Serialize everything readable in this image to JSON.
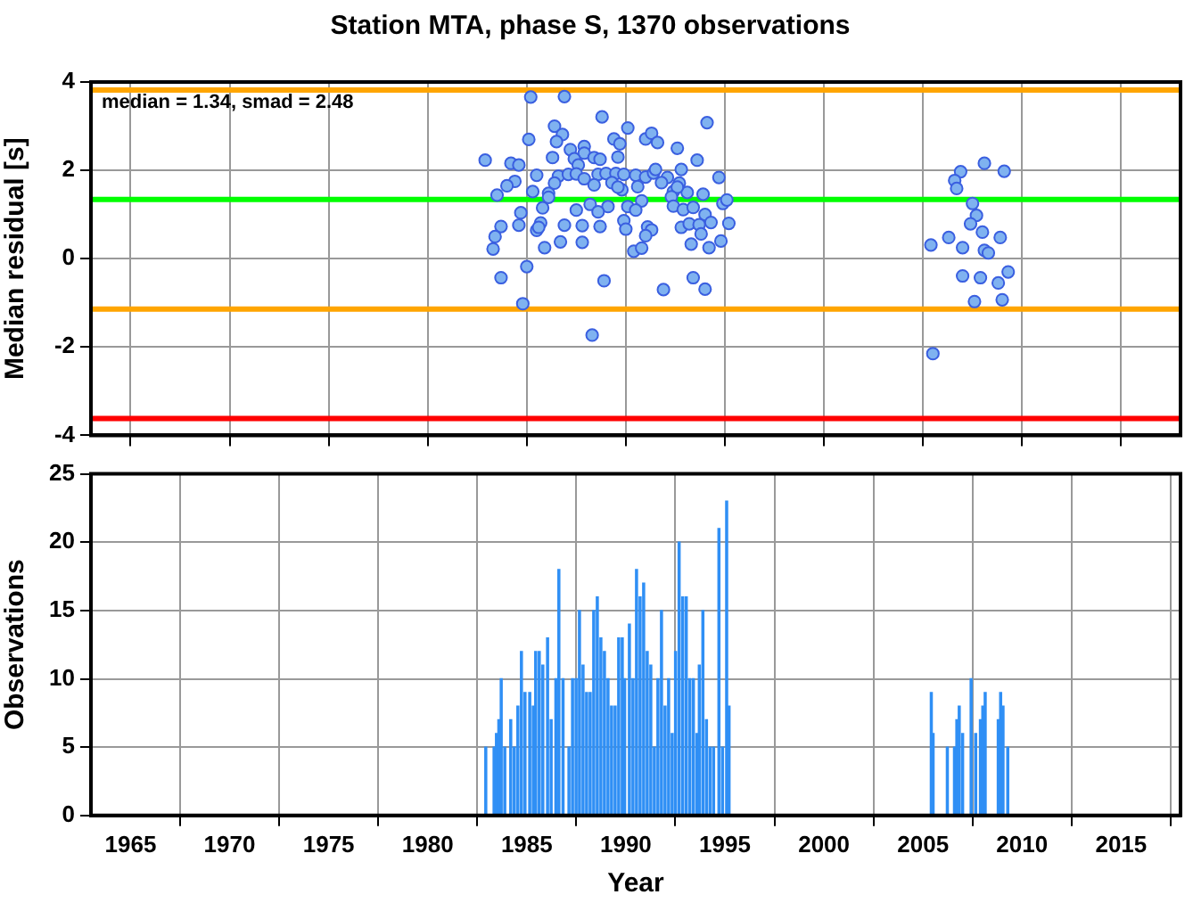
{
  "chart_data": [
    {
      "type": "scatter",
      "title": "Station MTA, phase S, 1370 observations",
      "ylabel": "Median residual [s]",
      "annotations": [
        "median = 1.34, smad = 2.48"
      ],
      "xlim": [
        1963,
        2018
      ],
      "xticks": [
        1965,
        1970,
        1975,
        1980,
        1985,
        1990,
        1995,
        2000,
        2005,
        2010,
        2015
      ],
      "ylim": [
        -4,
        4
      ],
      "yticks": [
        -4,
        -2,
        0,
        2,
        4
      ],
      "grid": true,
      "tick_labels": "y",
      "marker": "circle",
      "ref_lines": [
        {
          "axis": "y",
          "value": 3.82,
          "color": "#ffa500"
        },
        {
          "axis": "y",
          "value": 1.34,
          "color": "#00ff00"
        },
        {
          "axis": "y",
          "value": -1.14,
          "color": "#ffa500"
        },
        {
          "axis": "y",
          "value": -3.62,
          "color": "#ff0000"
        }
      ],
      "series": [
        {
          "color": "#7fb2f0",
          "x": [
            1985.2,
            1986.9,
            1988.8,
            1986.4,
            1986.8,
            1985.1,
            1986.5,
            1987.2,
            1987.9,
            1987.9,
            1987.4,
            1986.3,
            1982.9,
            1984.2,
            1984.6,
            1987.6,
            1988.4,
            1988.7,
            1989.6,
            1989.4,
            1989.7,
            1990.1,
            1991.0,
            1991.3,
            1991.6,
            1992.6,
            1994.1,
            1993.6,
            1992.8,
            1994.7,
            1985.5,
            1986.6,
            1987.1,
            1987.5,
            1987.9,
            1988.6,
            1989.0,
            1989.5,
            1989.9,
            1990.5,
            1991.0,
            1991.4,
            1991.5,
            1992.1,
            1991.8,
            1992.7,
            1988.4,
            1989.3,
            1989.8,
            1989.6,
            1990.6,
            1992.4,
            1984.4,
            1984.0,
            1986.4,
            1985.3,
            1986.1,
            1986.1,
            1983.5,
            1993.1,
            1993.9,
            1992.6,
            1992.3,
            1990.8,
            1994.9,
            1995.1,
            1985.8,
            1988.2,
            1989.1,
            1988.6,
            1987.5,
            1990.1,
            1990.5,
            1992.4,
            1992.9,
            1993.4,
            1984.7,
            1994.0,
            1989.9,
            1985.7,
            1983.7,
            1984.6,
            1986.9,
            1987.8,
            1988.7,
            1991.1,
            1991.3,
            1990.0,
            1992.8,
            1993.2,
            1993.7,
            1994.3,
            1995.2,
            1985.5,
            1985.6,
            1983.4,
            1991.0,
            1993.8,
            1985.9,
            1986.7,
            1987.8,
            1983.3,
            1990.4,
            1990.8,
            1993.3,
            1994.2,
            1994.8,
            1985.0,
            1983.7,
            1988.9,
            1993.4,
            1991.9,
            1994.0,
            1984.8,
            1988.3,
            2006.9,
            2008.1,
            2009.1,
            2006.6,
            2006.7,
            2007.5,
            2007.7,
            2007.4,
            2008.0,
            2008.9,
            2005.4,
            2006.3,
            2007.0,
            2008.1,
            2008.3,
            2009.3,
            2007.0,
            2007.9,
            2008.8,
            2007.6,
            2009.0,
            2005.5
          ],
          "values": [
            3.66,
            3.67,
            3.21,
            3.0,
            2.81,
            2.7,
            2.65,
            2.47,
            2.54,
            2.39,
            2.26,
            2.29,
            2.23,
            2.16,
            2.12,
            2.12,
            2.29,
            2.25,
            2.3,
            2.71,
            2.6,
            2.96,
            2.71,
            2.84,
            2.63,
            2.5,
            3.08,
            2.23,
            2.02,
            1.84,
            1.89,
            1.87,
            1.91,
            1.92,
            1.81,
            1.91,
            1.93,
            1.93,
            1.91,
            1.89,
            1.85,
            1.94,
            2.02,
            1.84,
            1.72,
            1.71,
            1.67,
            1.72,
            1.56,
            1.62,
            1.63,
            1.52,
            1.75,
            1.65,
            1.71,
            1.52,
            1.48,
            1.39,
            1.44,
            1.5,
            1.46,
            1.62,
            1.4,
            1.31,
            1.25,
            1.33,
            1.15,
            1.23,
            1.18,
            1.06,
            1.1,
            1.18,
            1.1,
            1.19,
            1.11,
            1.16,
            1.04,
            1.0,
            0.86,
            0.81,
            0.73,
            0.76,
            0.76,
            0.75,
            0.73,
            0.72,
            0.65,
            0.67,
            0.71,
            0.79,
            0.77,
            0.82,
            0.8,
            0.64,
            0.71,
            0.5,
            0.52,
            0.56,
            0.25,
            0.38,
            0.37,
            0.22,
            0.17,
            0.24,
            0.33,
            0.25,
            0.4,
            -0.18,
            -0.43,
            -0.5,
            -0.43,
            -0.7,
            -0.69,
            -1.02,
            -1.73,
            1.97,
            2.16,
            1.98,
            1.77,
            1.59,
            1.25,
            0.98,
            0.79,
            0.6,
            0.48,
            0.31,
            0.48,
            0.25,
            0.19,
            0.13,
            -0.3,
            -0.39,
            -0.43,
            -0.55,
            -0.97,
            -0.93,
            -2.15
          ]
        }
      ]
    },
    {
      "type": "bar",
      "xlabel": "Year",
      "ylabel": "Observations",
      "xlim": [
        1963,
        2018
      ],
      "xticks": [
        1965,
        1970,
        1975,
        1980,
        1985,
        1990,
        1995,
        2000,
        2005,
        2010,
        2015
      ],
      "ylim": [
        0,
        25
      ],
      "yticks": [
        0,
        5,
        10,
        15,
        20,
        25
      ],
      "grid": true,
      "series": [
        {
          "color": "#2f8ff5",
          "x": [
            1982.93,
            1983.35,
            1983.47,
            1983.59,
            1983.71,
            1983.89,
            1984.19,
            1984.37,
            1984.55,
            1984.73,
            1984.91,
            1985.15,
            1985.33,
            1985.45,
            1985.63,
            1985.81,
            1986.05,
            1986.23,
            1986.47,
            1986.62,
            1986.83,
            1987.13,
            1987.31,
            1987.49,
            1987.66,
            1987.84,
            1988.02,
            1988.2,
            1988.38,
            1988.56,
            1988.74,
            1988.92,
            1989.1,
            1989.28,
            1989.46,
            1989.64,
            1989.82,
            1989.94,
            1990.18,
            1990.36,
            1990.54,
            1990.72,
            1990.9,
            1991.08,
            1991.26,
            1991.44,
            1991.62,
            1991.8,
            1991.98,
            1992.16,
            1992.34,
            1992.51,
            1992.69,
            1992.87,
            1993.05,
            1993.23,
            1993.41,
            1993.59,
            1993.71,
            1993.89,
            1994.07,
            1994.25,
            1994.43,
            1994.7,
            1994.88,
            1995.09,
            1995.21,
            2005.42,
            2005.51,
            2006.23,
            2006.59,
            2006.71,
            2006.83,
            2007.0,
            2007.43,
            2007.66,
            2007.9,
            2008.02,
            2008.14,
            2008.8,
            2008.92,
            2009.04,
            2009.28
          ],
          "values": [
            5,
            5,
            6,
            7,
            10,
            5,
            7,
            5,
            8,
            12,
            9,
            9,
            8,
            12,
            12,
            11,
            13,
            7,
            10,
            18,
            10,
            5,
            10,
            10,
            15,
            11,
            9,
            9,
            15,
            16,
            13,
            12,
            10,
            8,
            8,
            13,
            13,
            10,
            14,
            10,
            18,
            16,
            17,
            12,
            11,
            5,
            10,
            15,
            8,
            10,
            6,
            12,
            20,
            16,
            16,
            10,
            10,
            6,
            11,
            15,
            7,
            5,
            5,
            21,
            5,
            23,
            8,
            9,
            6,
            5,
            5,
            7,
            8,
            6,
            10,
            6,
            7,
            8,
            9,
            7,
            9,
            8,
            5
          ]
        }
      ]
    }
  ]
}
